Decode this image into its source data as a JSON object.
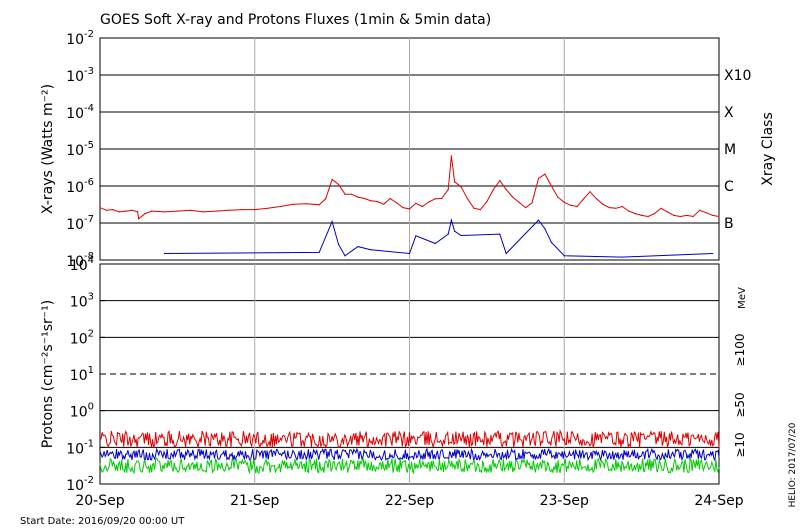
{
  "chart_data": [
    {
      "type": "line",
      "title": "GOES Soft X-ray and Protons Fluxes   (1min & 5min data)",
      "ylabel": "X-rays (Watts m⁻²)",
      "yscale": "log",
      "ylim": [
        1e-08,
        0.01
      ],
      "y_ticks": [
        {
          "value": 0.01,
          "base": "10",
          "exp": "-2"
        },
        {
          "value": 0.001,
          "base": "10",
          "exp": "-3"
        },
        {
          "value": 0.0001,
          "base": "10",
          "exp": "-4"
        },
        {
          "value": 1e-05,
          "base": "10",
          "exp": "-5"
        },
        {
          "value": 1e-06,
          "base": "10",
          "exp": "-6"
        },
        {
          "value": 1e-07,
          "base": "10",
          "exp": "-7"
        },
        {
          "value": 1e-08,
          "base": "10",
          "exp": "-8"
        }
      ],
      "right_axis_label": "Xray Class",
      "right_ticks": [
        {
          "label": "X10",
          "value": 0.001
        },
        {
          "label": "X",
          "value": 0.0001
        },
        {
          "label": "M",
          "value": 1e-05
        },
        {
          "label": "C",
          "value": 1e-06
        },
        {
          "label": "B",
          "value": 1e-07
        }
      ],
      "series": [
        {
          "color": "#e00000",
          "points": [
            [
              "2016-09-20 00:00",
              2.6e-07
            ],
            [
              "2016-09-20 01:00",
              2.2e-07
            ],
            [
              "2016-09-20 02:00",
              2.3e-07
            ],
            [
              "2016-09-20 03:00",
              2e-07
            ],
            [
              "2016-09-20 04:00",
              2.1e-07
            ],
            [
              "2016-09-20 05:00",
              2.2e-07
            ],
            [
              "2016-09-20 05:50",
              2e-07
            ],
            [
              "2016-09-20 06:00",
              1.3e-07
            ],
            [
              "2016-09-20 07:00",
              1.8e-07
            ],
            [
              "2016-09-20 08:00",
              2.1e-07
            ],
            [
              "2016-09-20 10:00",
              2e-07
            ],
            [
              "2016-09-20 12:00",
              2.1e-07
            ],
            [
              "2016-09-20 14:00",
              2.2e-07
            ],
            [
              "2016-09-20 16:00",
              2e-07
            ],
            [
              "2016-09-20 18:00",
              2.1e-07
            ],
            [
              "2016-09-20 20:00",
              2.2e-07
            ],
            [
              "2016-09-20 22:00",
              2.3e-07
            ],
            [
              "2016-09-21 00:00",
              2.3e-07
            ],
            [
              "2016-09-21 02:00",
              2.5e-07
            ],
            [
              "2016-09-21 04:00",
              2.8e-07
            ],
            [
              "2016-09-21 06:00",
              3.2e-07
            ],
            [
              "2016-09-21 08:00",
              3.3e-07
            ],
            [
              "2016-09-21 10:00",
              3.1e-07
            ],
            [
              "2016-09-21 11:00",
              4.5e-07
            ],
            [
              "2016-09-21 12:00",
              1.5e-06
            ],
            [
              "2016-09-21 12:30",
              1.3e-06
            ],
            [
              "2016-09-21 13:00",
              1.1e-06
            ],
            [
              "2016-09-21 14:00",
              6e-07
            ],
            [
              "2016-09-21 15:00",
              6e-07
            ],
            [
              "2016-09-21 16:00",
              5e-07
            ],
            [
              "2016-09-21 17:00",
              4.6e-07
            ],
            [
              "2016-09-21 18:00",
              4e-07
            ],
            [
              "2016-09-21 19:00",
              3.8e-07
            ],
            [
              "2016-09-21 20:00",
              3.2e-07
            ],
            [
              "2016-09-21 21:00",
              4.6e-07
            ],
            [
              "2016-09-21 22:00",
              3.5e-07
            ],
            [
              "2016-09-21 23:00",
              2.6e-07
            ],
            [
              "2016-09-22 00:00",
              2.4e-07
            ],
            [
              "2016-09-22 01:00",
              3.4e-07
            ],
            [
              "2016-09-22 02:00",
              2.8e-07
            ],
            [
              "2016-09-22 03:00",
              3.7e-07
            ],
            [
              "2016-09-22 04:00",
              4.5e-07
            ],
            [
              "2016-09-22 05:00",
              4.6e-07
            ],
            [
              "2016-09-22 06:00",
              8e-07
            ],
            [
              "2016-09-22 06:30",
              6.5e-06
            ],
            [
              "2016-09-22 07:00",
              1.3e-06
            ],
            [
              "2016-09-22 08:00",
              9.5e-07
            ],
            [
              "2016-09-22 09:00",
              4.5e-07
            ],
            [
              "2016-09-22 10:00",
              2.5e-07
            ],
            [
              "2016-09-22 11:00",
              2.3e-07
            ],
            [
              "2016-09-22 12:00",
              3.8e-07
            ],
            [
              "2016-09-22 13:00",
              8e-07
            ],
            [
              "2016-09-22 14:00",
              1.4e-06
            ],
            [
              "2016-09-22 15:00",
              8e-07
            ],
            [
              "2016-09-22 16:00",
              5e-07
            ],
            [
              "2016-09-22 17:00",
              3.6e-07
            ],
            [
              "2016-09-22 18:00",
              2.6e-07
            ],
            [
              "2016-09-22 19:00",
              3.5e-07
            ],
            [
              "2016-09-22 20:00",
              1.6e-06
            ],
            [
              "2016-09-22 21:00",
              2.1e-06
            ],
            [
              "2016-09-22 22:00",
              1e-06
            ],
            [
              "2016-09-22 23:00",
              5e-07
            ],
            [
              "2016-09-23 00:00",
              3.6e-07
            ],
            [
              "2016-09-23 01:00",
              3e-07
            ],
            [
              "2016-09-23 02:00",
              2.8e-07
            ],
            [
              "2016-09-23 03:00",
              4.5e-07
            ],
            [
              "2016-09-23 04:00",
              7e-07
            ],
            [
              "2016-09-23 05:00",
              4.5e-07
            ],
            [
              "2016-09-23 06:00",
              3.2e-07
            ],
            [
              "2016-09-23 07:00",
              2.6e-07
            ],
            [
              "2016-09-23 08:00",
              2.5e-07
            ],
            [
              "2016-09-23 09:00",
              2.8e-07
            ],
            [
              "2016-09-23 10:00",
              2.1e-07
            ],
            [
              "2016-09-23 11:00",
              1.8e-07
            ],
            [
              "2016-09-23 12:00",
              1.6e-07
            ],
            [
              "2016-09-23 13:00",
              1.5e-07
            ],
            [
              "2016-09-23 14:00",
              1.8e-07
            ],
            [
              "2016-09-23 15:00",
              2.5e-07
            ],
            [
              "2016-09-23 16:00",
              2e-07
            ],
            [
              "2016-09-23 17:00",
              1.6e-07
            ],
            [
              "2016-09-23 18:00",
              1.5e-07
            ],
            [
              "2016-09-23 19:00",
              1.6e-07
            ],
            [
              "2016-09-23 20:00",
              1.5e-07
            ],
            [
              "2016-09-23 21:00",
              2.2e-07
            ],
            [
              "2016-09-23 22:00",
              1.9e-07
            ],
            [
              "2016-09-23 23:00",
              1.6e-07
            ],
            [
              "2016-09-24 00:00",
              1.5e-07
            ]
          ]
        },
        {
          "color": "#0000c8",
          "points": [
            [
              "2016-09-20 10:00",
              1.5e-08
            ],
            [
              "2016-09-21 10:00",
              1.6e-08
            ],
            [
              "2016-09-21 12:00",
              1.1e-07
            ],
            [
              "2016-09-21 13:00",
              2.6e-08
            ],
            [
              "2016-09-21 14:00",
              1.3e-08
            ],
            [
              "2016-09-21 16:00",
              2.3e-08
            ],
            [
              "2016-09-21 18:00",
              1.9e-08
            ],
            [
              "2016-09-22 00:00",
              1.5e-08
            ],
            [
              "2016-09-22 01:00",
              4.5e-08
            ],
            [
              "2016-09-22 04:00",
              2.8e-08
            ],
            [
              "2016-09-22 06:00",
              5e-08
            ],
            [
              "2016-09-22 06:30",
              1.2e-07
            ],
            [
              "2016-09-22 07:00",
              6e-08
            ],
            [
              "2016-09-22 08:00",
              4.6e-08
            ],
            [
              "2016-09-22 14:00",
              5e-08
            ],
            [
              "2016-09-22 15:00",
              1.5e-08
            ],
            [
              "2016-09-22 20:00",
              1.2e-07
            ],
            [
              "2016-09-22 21:00",
              7e-08
            ],
            [
              "2016-09-22 22:00",
              3e-08
            ],
            [
              "2016-09-23 00:00",
              1.3e-08
            ],
            [
              "2016-09-23 09:00",
              1.2e-08
            ],
            [
              "2016-09-23 23:00",
              1.5e-08
            ]
          ]
        }
      ]
    },
    {
      "type": "line",
      "ylabel": "Protons (cm⁻²s⁻¹sr⁻¹)",
      "yscale": "log",
      "ylim": [
        0.01,
        10000
      ],
      "y_ticks": [
        {
          "value": 10000,
          "base": "10",
          "exp": "4"
        },
        {
          "value": 1000,
          "base": "10",
          "exp": "3"
        },
        {
          "value": 100,
          "base": "10",
          "exp": "2"
        },
        {
          "value": 10,
          "base": "10",
          "exp": "1"
        },
        {
          "value": 1,
          "base": "10",
          "exp": "0"
        },
        {
          "value": 0.1,
          "base": "10",
          "exp": "-1"
        },
        {
          "value": 0.01,
          "base": "10",
          "exp": "-2"
        }
      ],
      "threshold_line": 10,
      "right_unit": "MeV",
      "series": [
        {
          "name": "≥10",
          "color": "#e00000",
          "baseline": 0.15,
          "range": [
            0.1,
            0.28
          ]
        },
        {
          "name": "≥50",
          "color": "#0000c8",
          "baseline": 0.06,
          "range": [
            0.045,
            0.09
          ]
        },
        {
          "name": "≥100",
          "color": "#00cc00",
          "baseline": 0.032,
          "range": [
            0.02,
            0.05
          ]
        }
      ]
    }
  ],
  "x_axis": {
    "range": [
      "2016-09-20 00:00",
      "2016-09-24 00:00"
    ],
    "ticks": [
      {
        "label": "20-Sep",
        "value": "2016-09-20 00:00"
      },
      {
        "label": "21-Sep",
        "value": "2016-09-21 00:00"
      },
      {
        "label": "22-Sep",
        "value": "2016-09-22 00:00"
      },
      {
        "label": "23-Sep",
        "value": "2016-09-23 00:00"
      },
      {
        "label": "24-Sep",
        "value": "2016-09-24 00:00"
      }
    ]
  },
  "footer": {
    "start_date": "Start Date: 2016/09/20 00:00 UT",
    "credit": "HELIO: 2017/07/20"
  },
  "colors": {
    "axis": "#000000",
    "day_divider": "#aaaaaa"
  }
}
